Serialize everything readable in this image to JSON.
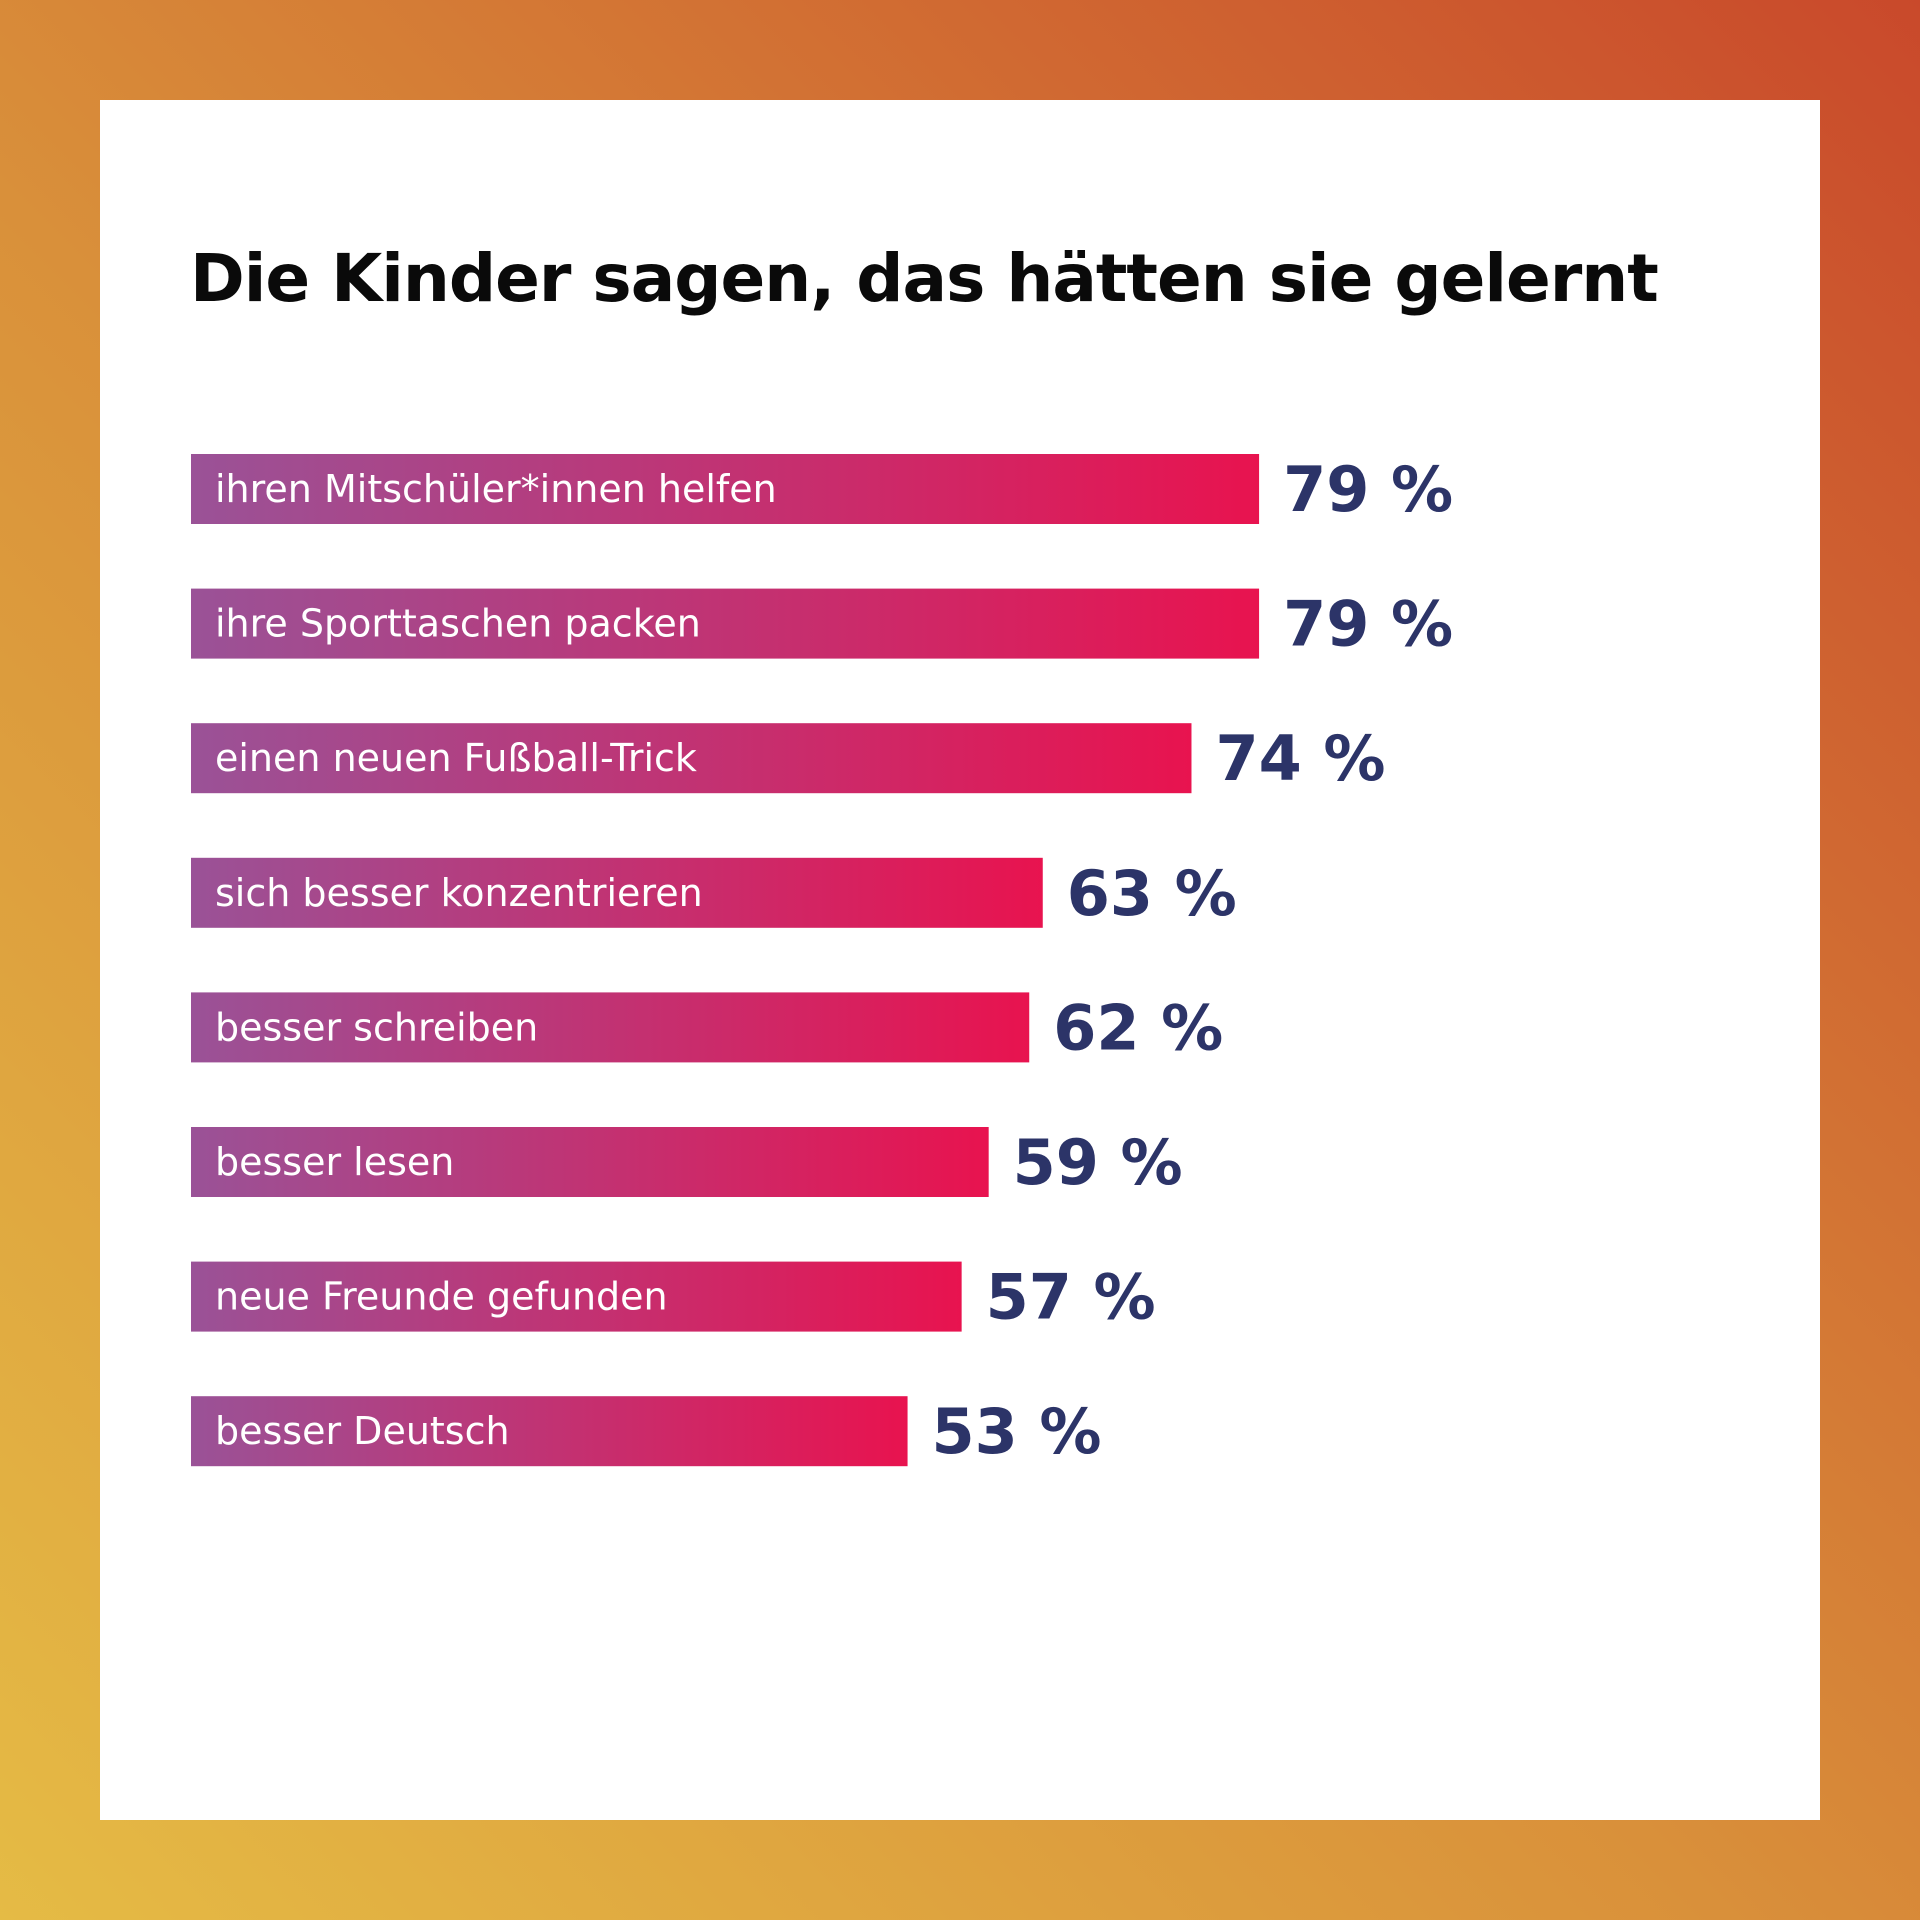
{
  "colors": {
    "bar_start": "#9a5297",
    "bar_end": "#e8134f",
    "value_text": "#2c3468",
    "card": "#ffffff"
  },
  "chart_data": {
    "type": "bar",
    "orientation": "horizontal",
    "title": "Die Kinder sagen, das hätten sie gelernt",
    "unit": "%",
    "categories": [
      "ihren Mitschüler*innen helfen",
      "ihre Sporttaschen packen",
      "einen neuen Fußball-Trick",
      "sich besser konzentrieren",
      "besser schreiben",
      "besser lesen",
      "neue Freunde gefunden",
      "besser Deutsch"
    ],
    "values": [
      79,
      79,
      74,
      63,
      62,
      59,
      57,
      53
    ],
    "value_labels": [
      "79 %",
      "79 %",
      "74 %",
      "63 %",
      "62 %",
      "59 %",
      "57 %",
      "53 %"
    ],
    "xlim": [
      0,
      100
    ],
    "grid": false,
    "legend": "none"
  }
}
